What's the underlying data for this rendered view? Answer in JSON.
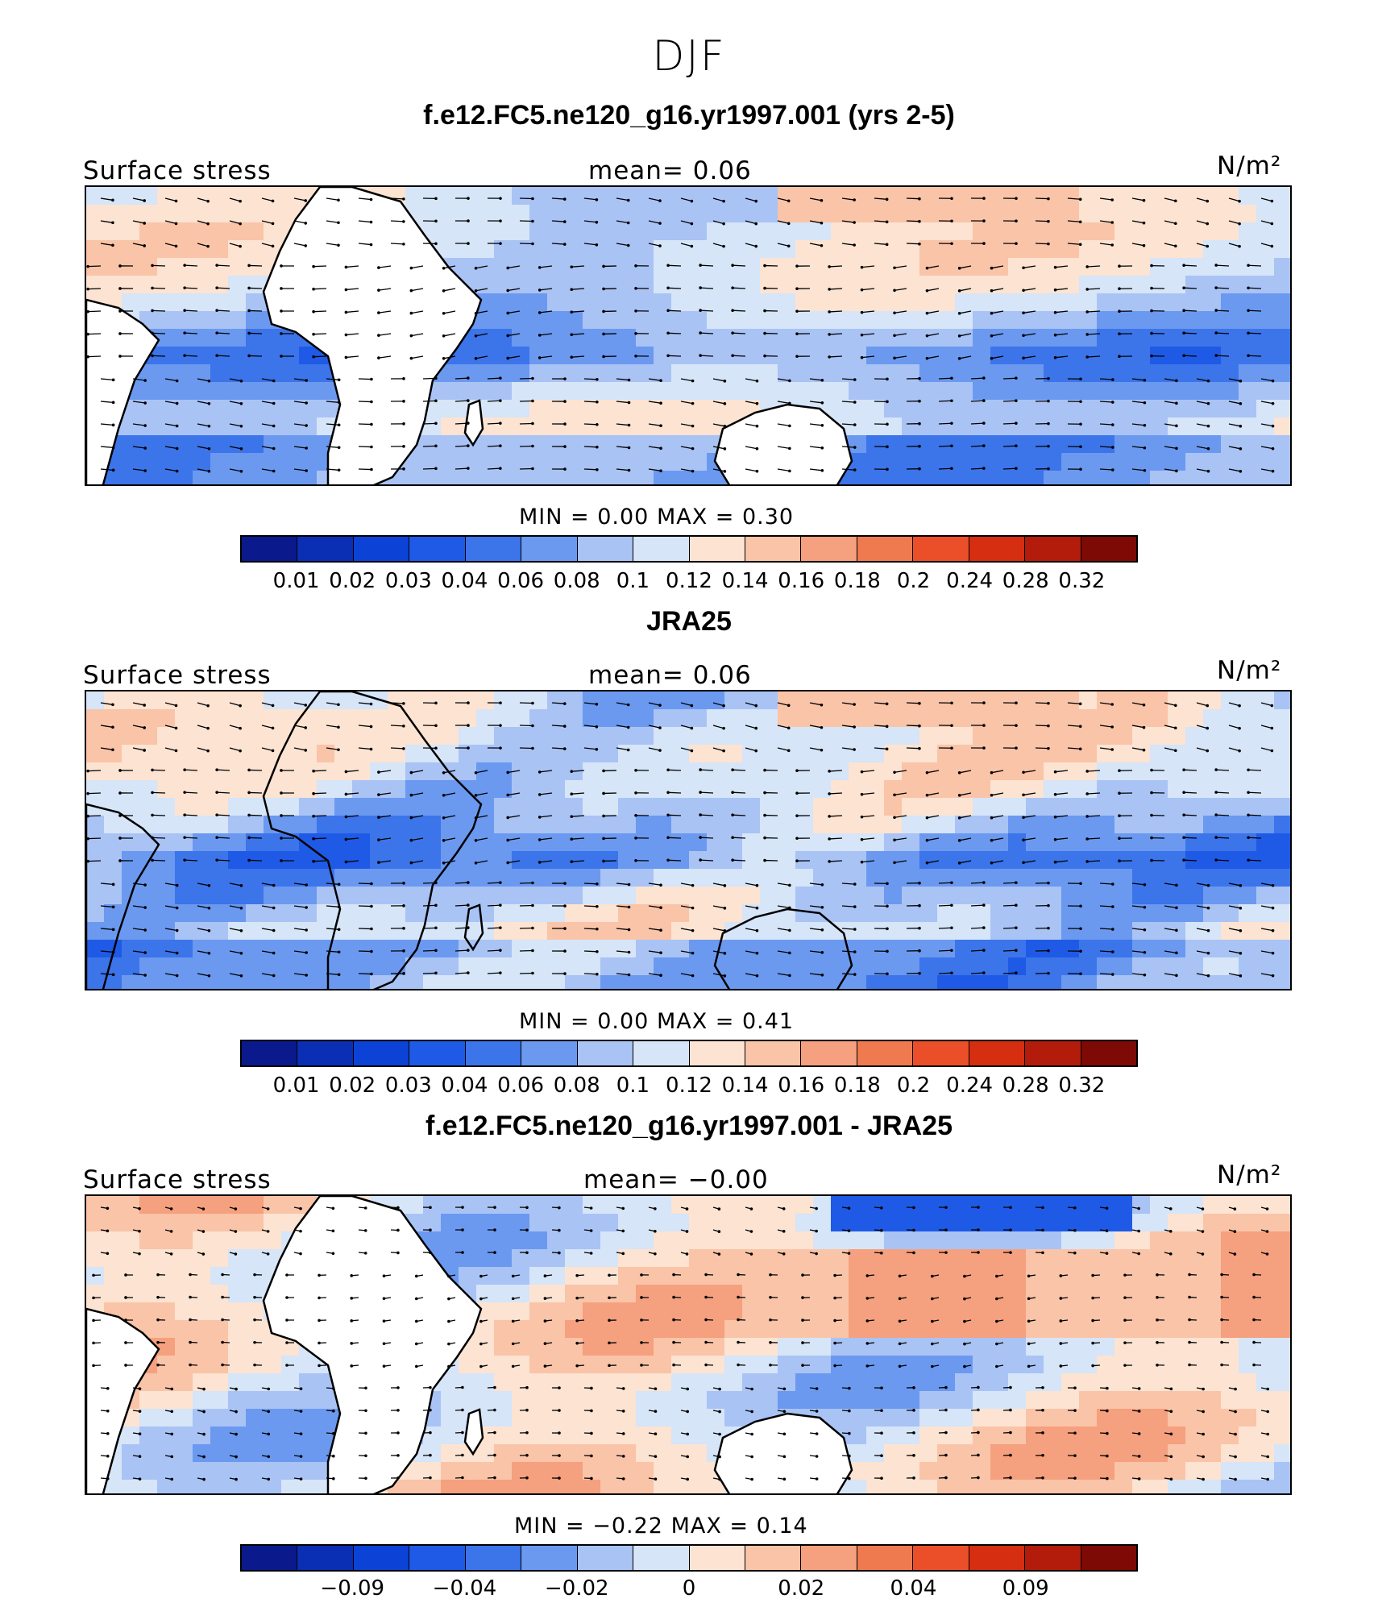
{
  "figure": {
    "title": "DJF"
  },
  "panels": [
    {
      "title": "f.e12.FC5.ne120_g16.yr1997.001 (yrs 2-5)",
      "left_label": "Surface stress",
      "mean_text": "mean=    0.06",
      "units": "N/m²",
      "min_max_text": "MIN =     0.00  MAX =     0.30"
    },
    {
      "title": "JRA25",
      "left_label": "Surface stress",
      "mean_text": "mean=    0.06",
      "units": "N/m²",
      "min_max_text": "MIN =     0.00  MAX =     0.41"
    },
    {
      "title": "f.e12.FC5.ne120_g16.yr1997.001 - JRA25",
      "left_label": "Surface stress",
      "mean_text": "mean=   −0.00",
      "units": "N/m²",
      "min_max_text": "MIN =   −0.22  MAX =     0.14"
    }
  ],
  "chart_data": [
    {
      "type": "heatmap",
      "title": "f.e12.FC5.ne120_g16.yr1997.001 (yrs 2-5)",
      "variable": "Surface stress",
      "units": "N/m2",
      "mean": 0.06,
      "min": 0.0,
      "max": 0.3,
      "colorbar_levels": [
        "0.01",
        "0.02",
        "0.03",
        "0.04",
        "0.06",
        "0.08",
        "0.1",
        "0.12",
        "0.14",
        "0.16",
        "0.18",
        "0.2",
        "0.24",
        "0.28",
        "0.32"
      ],
      "colors": [
        "#0a1a8c",
        "#0a2fb4",
        "#0d42d6",
        "#1f5ae6",
        "#3c74ea",
        "#6b99f0",
        "#a9c3f5",
        "#d6e5f8",
        "#fce3d2",
        "#fac4a8",
        "#f5a07e",
        "#f07a50",
        "#ea4f2a",
        "#d52e10",
        "#b31c0a",
        "#7d0a05"
      ]
    },
    {
      "type": "heatmap",
      "title": "JRA25",
      "variable": "Surface stress",
      "units": "N/m2",
      "mean": 0.06,
      "min": 0.0,
      "max": 0.41,
      "colorbar_levels": [
        "0.01",
        "0.02",
        "0.03",
        "0.04",
        "0.06",
        "0.08",
        "0.1",
        "0.12",
        "0.14",
        "0.16",
        "0.18",
        "0.2",
        "0.24",
        "0.28",
        "0.32"
      ],
      "colors": [
        "#0a1a8c",
        "#0a2fb4",
        "#0d42d6",
        "#1f5ae6",
        "#3c74ea",
        "#6b99f0",
        "#a9c3f5",
        "#d6e5f8",
        "#fce3d2",
        "#fac4a8",
        "#f5a07e",
        "#f07a50",
        "#ea4f2a",
        "#d52e10",
        "#b31c0a",
        "#7d0a05"
      ]
    },
    {
      "type": "heatmap",
      "title": "f.e12.FC5.ne120_g16.yr1997.001 - JRA25",
      "variable": "Surface stress",
      "units": "N/m2",
      "mean": -0.0,
      "min": -0.22,
      "max": 0.14,
      "colorbar_levels": [
        "−0.09",
        "−0.04",
        "−0.02",
        "0",
        "0.02",
        "0.04",
        "0.09"
      ],
      "colors": [
        "#0a1a8c",
        "#0a2fb4",
        "#0d42d6",
        "#1f5ae6",
        "#3c74ea",
        "#6b99f0",
        "#a9c3f5",
        "#d6e5f8",
        "#fce3d2",
        "#fac4a8",
        "#f5a07e",
        "#f07a50",
        "#ea4f2a",
        "#d52e10",
        "#b31c0a",
        "#7d0a05"
      ]
    }
  ]
}
